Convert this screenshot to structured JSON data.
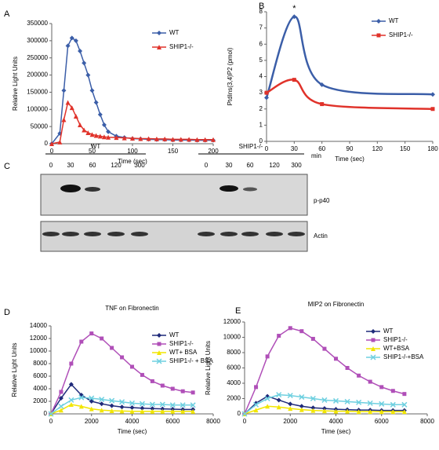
{
  "chart_data": [
    {
      "type": "line",
      "panel": "A",
      "ylabel": "Relative Light Units",
      "xlabel": "Time (sec)",
      "x": [
        0,
        10,
        15,
        20,
        25,
        30,
        35,
        40,
        45,
        50,
        55,
        60,
        65,
        70,
        80,
        90,
        100,
        110,
        120,
        130,
        140,
        150,
        160,
        170,
        180,
        190,
        200
      ],
      "xlim": [
        0,
        200
      ],
      "xticks": [
        0,
        50,
        100,
        150,
        200
      ],
      "ylim": [
        0,
        350000
      ],
      "yticks": [
        0,
        50000,
        100000,
        150000,
        200000,
        250000,
        300000,
        350000
      ],
      "legend": "upper right",
      "smooth": false,
      "series": [
        {
          "name": "WT",
          "color": "#3b5ea8",
          "marker": "diamond",
          "values": [
            0,
            30000,
            155000,
            285000,
            308000,
            300000,
            270000,
            235000,
            200000,
            155000,
            120000,
            85000,
            55000,
            35000,
            22000,
            18000,
            15000,
            14000,
            13000,
            12000,
            12000,
            11000,
            11000,
            11000,
            10000,
            10000,
            10000
          ]
        },
        {
          "name": "SHIP1-/-",
          "color": "#e0322a",
          "marker": "triangle",
          "values": [
            0,
            5000,
            70000,
            120000,
            105000,
            80000,
            55000,
            40000,
            32000,
            27000,
            24000,
            22000,
            20000,
            19000,
            18000,
            17000,
            16000,
            15000,
            15000,
            14000,
            14000,
            13000,
            13000,
            13000,
            12000,
            12000,
            12000
          ]
        }
      ]
    },
    {
      "type": "line",
      "panel": "B",
      "ylabel": "PtdIns(3,4)P2 (pmol)",
      "xlabel": "Time (sec)",
      "annotation": "*",
      "x": [
        0,
        30,
        60,
        180
      ],
      "xlim": [
        0,
        180
      ],
      "xticks": [
        0,
        30,
        60,
        90,
        120,
        150,
        180
      ],
      "ylim": [
        0,
        8
      ],
      "yticks": [
        0,
        1,
        2,
        3,
        4,
        5,
        6,
        7,
        8
      ],
      "legend": "upper right",
      "smooth": true,
      "series": [
        {
          "name": "WT",
          "color": "#3b5ea8",
          "marker": "diamond",
          "values": [
            2.7,
            7.7,
            3.5,
            2.9
          ]
        },
        {
          "name": "SHIP1-/-",
          "color": "#e0322a",
          "marker": "square",
          "values": [
            3.0,
            3.8,
            2.3,
            2.0
          ]
        }
      ]
    },
    {
      "type": "line",
      "panel": "D",
      "title": "TNF on Fibronectin",
      "ylabel": "Relative Light Units",
      "xlabel": "Time (sec)",
      "x": [
        0,
        500,
        1000,
        1500,
        2000,
        2500,
        3000,
        3500,
        4000,
        4500,
        5000,
        5500,
        6000,
        6500,
        7000
      ],
      "xlim": [
        0,
        8000
      ],
      "xticks": [
        0,
        2000,
        4000,
        6000,
        8000
      ],
      "ylim": [
        0,
        14000
      ],
      "yticks": [
        0,
        2000,
        4000,
        6000,
        8000,
        10000,
        12000,
        14000
      ],
      "legend": "upper right",
      "smooth": false,
      "series": [
        {
          "name": "WT",
          "color": "#1f2a7a",
          "marker": "diamond",
          "values": [
            0,
            2500,
            4700,
            3000,
            2000,
            1600,
            1300,
            1100,
            1000,
            900,
            850,
            800,
            750,
            700,
            700
          ]
        },
        {
          "name": "SHIP1-/-",
          "color": "#b04fb8",
          "marker": "square",
          "values": [
            0,
            3500,
            8000,
            11500,
            12800,
            12000,
            10500,
            9000,
            7500,
            6200,
            5200,
            4500,
            4000,
            3600,
            3400
          ]
        },
        {
          "name": "WT+ BSA",
          "color": "#f2e600",
          "marker": "triangle",
          "values": [
            0,
            600,
            1500,
            1200,
            800,
            600,
            500,
            450,
            400,
            400,
            400,
            400,
            400,
            400,
            400
          ]
        },
        {
          "name": "SHIP1-/- + BSA",
          "color": "#6fd0e0",
          "marker": "x",
          "values": [
            0,
            1200,
            2200,
            2600,
            2500,
            2300,
            2100,
            1900,
            1700,
            1600,
            1500,
            1500,
            1400,
            1400,
            1400
          ]
        }
      ]
    },
    {
      "type": "line",
      "panel": "E",
      "title": "MIP2 on Fibronectin",
      "ylabel": "Relative Light Units",
      "xlabel": "Time (sec)",
      "x": [
        0,
        500,
        1000,
        1500,
        2000,
        2500,
        3000,
        3500,
        4000,
        4500,
        5000,
        5500,
        6000,
        6500,
        7000
      ],
      "xlim": [
        0,
        8000
      ],
      "xticks": [
        0,
        2000,
        4000,
        6000,
        8000
      ],
      "ylim": [
        0,
        12000
      ],
      "yticks": [
        0,
        2000,
        4000,
        6000,
        8000,
        10000,
        12000
      ],
      "legend": "upper right",
      "smooth": false,
      "series": [
        {
          "name": "WT",
          "color": "#1f2a7a",
          "marker": "diamond",
          "values": [
            0,
            1400,
            2300,
            1800,
            1300,
            1000,
            800,
            700,
            600,
            550,
            500,
            500,
            450,
            450,
            450
          ]
        },
        {
          "name": "SHIP1-/-",
          "color": "#b04fb8",
          "marker": "square",
          "values": [
            0,
            3500,
            7500,
            10200,
            11200,
            10800,
            9800,
            8500,
            7200,
            6000,
            5000,
            4200,
            3500,
            3000,
            2600
          ]
        },
        {
          "name": "WT+BSA",
          "color": "#f2e600",
          "marker": "triangle",
          "values": [
            0,
            500,
            1000,
            900,
            700,
            550,
            450,
            400,
            350,
            350,
            300,
            300,
            300,
            300,
            300
          ]
        },
        {
          "name": "SHIP1-/-+BSA",
          "color": "#6fd0e0",
          "marker": "x",
          "values": [
            0,
            1200,
            2000,
            2500,
            2400,
            2200,
            2000,
            1800,
            1700,
            1600,
            1500,
            1400,
            1300,
            1200,
            1200
          ]
        }
      ]
    }
  ],
  "blot": {
    "panel": "C",
    "unit": "min",
    "rows": [
      "p-p40",
      "Actin"
    ],
    "groups": [
      {
        "label": "WT",
        "lanes": [
          "0",
          "30",
          "60",
          "120",
          "300"
        ]
      },
      {
        "label": "SHIP1-/-",
        "lanes": [
          "0",
          "30",
          "60",
          "120",
          "300"
        ]
      }
    ]
  }
}
